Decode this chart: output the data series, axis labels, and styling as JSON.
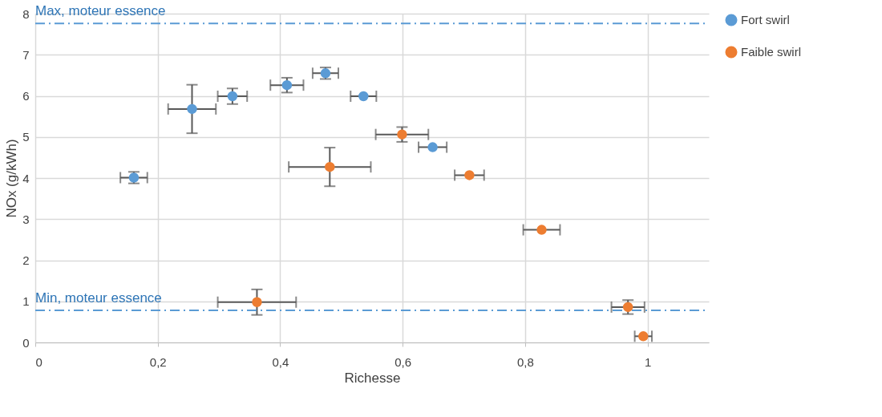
{
  "chart_data": {
    "type": "scatter",
    "xlabel": "Richesse",
    "ylabel": "NOx (g/kWh)",
    "xlim": [
      0,
      1.1
    ],
    "ylim": [
      0,
      8
    ],
    "xticks": [
      0,
      {
        "value": 0.2,
        "label": "0,2"
      },
      {
        "value": 0.4,
        "label": "0,4"
      },
      {
        "value": 0.6,
        "label": "0,6"
      },
      {
        "value": 0.8,
        "label": "0,8"
      },
      1
    ],
    "yticks": [
      0,
      1,
      2,
      3,
      4,
      5,
      6,
      7,
      8
    ],
    "grid": true,
    "legend": "right",
    "marker": "circle",
    "series": [
      {
        "name": "Fort swirl",
        "color": "#5b9bd5",
        "x": [
          0.161,
          0.256,
          0.322,
          0.411,
          0.474,
          0.536,
          0.649
        ],
        "values": [
          4.01,
          5.68,
          5.99,
          6.26,
          6.55,
          5.99,
          4.75
        ],
        "errors": [
          0.14,
          0.59,
          0.19,
          0.18,
          0.14,
          null,
          null
        ],
        "xerrors": [
          0.022,
          0.039,
          0.024,
          0.027,
          0.021,
          0.021,
          0.023
        ]
      },
      {
        "name": "Faible swirl",
        "color": "#ed7d31",
        "x": [
          0.362,
          0.481,
          0.599,
          0.709,
          0.827,
          0.968,
          0.993
        ],
        "values": [
          0.98,
          4.27,
          5.06,
          4.07,
          2.74,
          0.86,
          0.15
        ],
        "errors": [
          0.31,
          0.47,
          0.18,
          null,
          null,
          0.17,
          null
        ],
        "xerrors": [
          0.064,
          0.067,
          0.043,
          0.024,
          0.03,
          0.027,
          0.014
        ]
      }
    ],
    "ref_lines": [
      {
        "axis": "y",
        "value": 7.76,
        "label": "Max, moteur essence",
        "color": "#5b9bd5",
        "line_style": "dashdot"
      },
      {
        "axis": "y",
        "value": 0.78,
        "label": "Min, moteur essence",
        "color": "#5b9bd5",
        "line_style": "dashdot"
      }
    ]
  }
}
